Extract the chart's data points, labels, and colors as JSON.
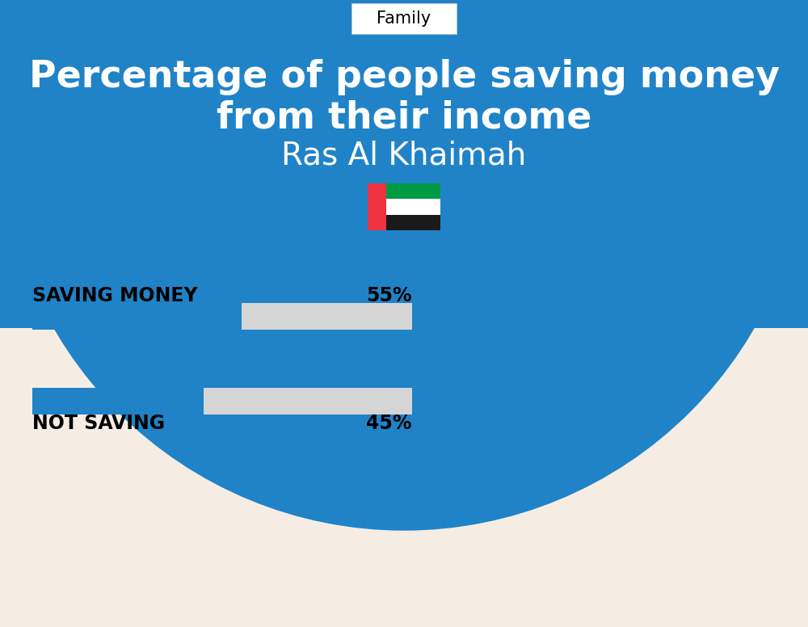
{
  "title_line1": "Percentage of people saving money",
  "title_line2": "from their income",
  "subtitle": "Ras Al Khaimah",
  "category_label": "Family",
  "bg_color": "#f5ede3",
  "header_bg_color": "#2083c8",
  "bar_color": "#2083c8",
  "bar_bg_color": "#d5d5d5",
  "label_color": "#000000",
  "title_color": "#ffffff",
  "subtitle_color": "#ffffff",
  "items": [
    {
      "label": "SAVING MONEY",
      "value": 55,
      "value_str": "55%"
    },
    {
      "label": "NOT SAVING",
      "value": 45,
      "value_str": "45%"
    }
  ],
  "bar_max": 100,
  "label_fontsize": 17,
  "value_fontsize": 17,
  "title_fontsize": 33,
  "subtitle_fontsize": 28,
  "category_fontsize": 15,
  "flag_fontsize": 40
}
